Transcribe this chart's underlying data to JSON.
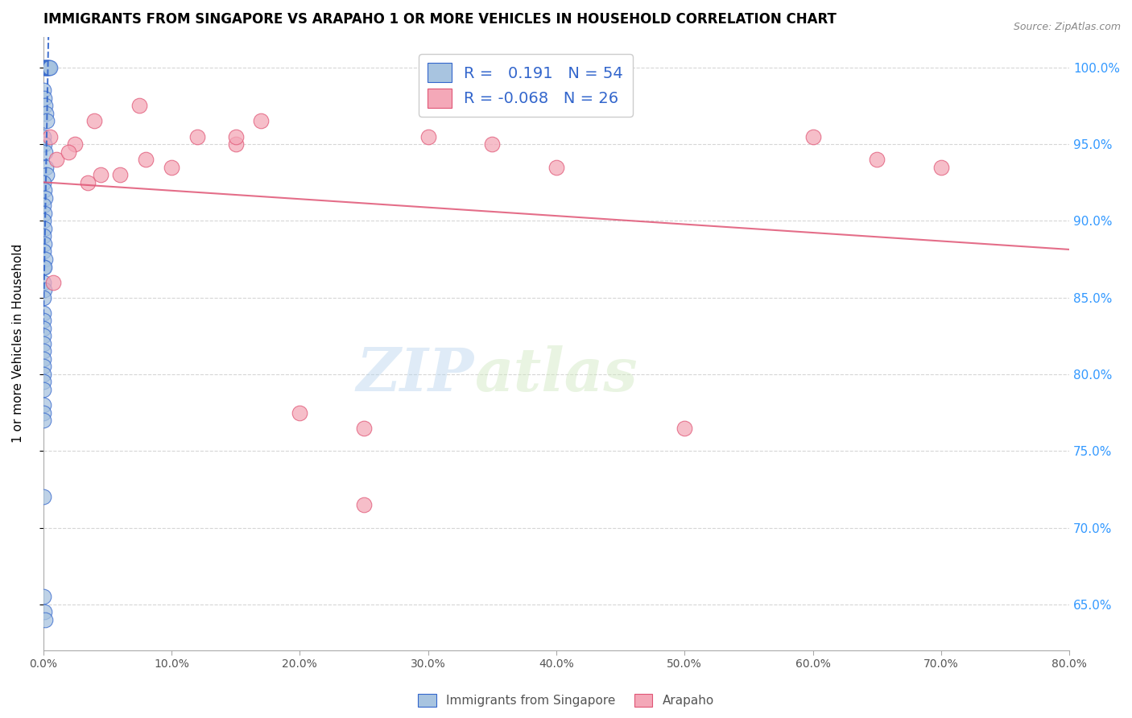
{
  "title": "IMMIGRANTS FROM SINGAPORE VS ARAPAHO 1 OR MORE VEHICLES IN HOUSEHOLD CORRELATION CHART",
  "source": "Source: ZipAtlas.com",
  "ylabel": "1 or more Vehicles in Household",
  "xlim": [
    0.0,
    80.0
  ],
  "ylim": [
    62.0,
    102.0
  ],
  "legend_blue_r": "0.191",
  "legend_blue_n": "54",
  "legend_pink_r": "-0.068",
  "legend_pink_n": "26",
  "legend_label_blue": "Immigrants from Singapore",
  "legend_label_pink": "Arapaho",
  "blue_color": "#a8c4e0",
  "pink_color": "#f4a8b8",
  "blue_line_color": "#3366cc",
  "pink_line_color": "#e05575",
  "watermark_zip": "ZIP",
  "watermark_atlas": "atlas",
  "blue_scatter_x": [
    0.05,
    0.1,
    0.15,
    0.2,
    0.25,
    0.3,
    0.35,
    0.4,
    0.45,
    0.5,
    0.05,
    0.1,
    0.15,
    0.2,
    0.25,
    0.05,
    0.1,
    0.15,
    0.2,
    0.25,
    0.05,
    0.1,
    0.15,
    0.05,
    0.1,
    0.05,
    0.1,
    0.05,
    0.1,
    0.05,
    0.15,
    0.05,
    0.08,
    0.05,
    0.1,
    0.05,
    0.05,
    0.05,
    0.05,
    0.05,
    0.05,
    0.05,
    0.05,
    0.05,
    0.05,
    0.05,
    0.05,
    0.05,
    0.05,
    0.05,
    0.05,
    0.05,
    0.1,
    0.15
  ],
  "blue_scatter_y": [
    100.0,
    100.0,
    100.0,
    100.0,
    100.0,
    100.0,
    100.0,
    100.0,
    100.0,
    100.0,
    98.5,
    98.0,
    97.5,
    97.0,
    96.5,
    95.5,
    95.0,
    94.5,
    93.5,
    93.0,
    92.5,
    92.0,
    91.5,
    91.0,
    90.5,
    90.0,
    89.5,
    89.0,
    88.5,
    88.0,
    87.5,
    87.0,
    87.0,
    86.0,
    85.5,
    85.0,
    84.0,
    83.5,
    83.0,
    82.5,
    82.0,
    81.5,
    81.0,
    80.5,
    80.0,
    79.5,
    79.0,
    78.0,
    77.5,
    77.0,
    72.0,
    65.5,
    64.5,
    64.0
  ],
  "pink_scatter_x": [
    0.5,
    1.0,
    2.5,
    3.5,
    4.0,
    6.0,
    7.5,
    10.0,
    12.0,
    15.0,
    17.0,
    20.0,
    25.0,
    30.0,
    35.0,
    40.0,
    50.0,
    60.0,
    65.0,
    70.0,
    0.8,
    2.0,
    4.5,
    8.0,
    15.0,
    25.0
  ],
  "pink_scatter_y": [
    95.5,
    94.0,
    95.0,
    92.5,
    96.5,
    93.0,
    97.5,
    93.5,
    95.5,
    95.0,
    96.5,
    77.5,
    76.5,
    95.5,
    95.0,
    93.5,
    76.5,
    95.5,
    94.0,
    93.5,
    86.0,
    94.5,
    93.0,
    94.0,
    95.5,
    71.5
  ]
}
